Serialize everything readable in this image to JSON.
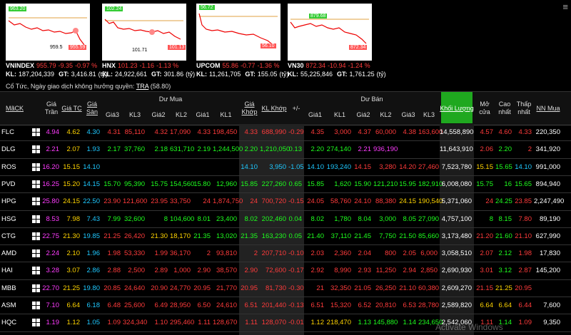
{
  "indices": [
    {
      "name": "VNINDEX",
      "value": "955.79",
      "change": "-9.35",
      "percent": "-0.97 %",
      "kl_label": "KL:",
      "volume": "187,204,339",
      "gt_label": "GT:",
      "turnover": "3,416.81",
      "unit": "(tỷ)",
      "chart_labels": [
        "963.20",
        "959.5",
        "955.59"
      ]
    },
    {
      "name": "HNX",
      "value": "101.23",
      "change": "-1.16",
      "percent": "-1.13 %",
      "kl_label": "KL:",
      "volume": "24,922,661",
      "gt_label": "GT:",
      "turnover": "301.86",
      "unit": "(tỷ)",
      "chart_labels": [
        "102.24",
        "101.71",
        "101.13"
      ]
    },
    {
      "name": "UPCOM",
      "value": "55.86",
      "change": "-0.77",
      "percent": "-1.36 %",
      "kl_label": "KL:",
      "volume": "11,261,705",
      "gt_label": "GT:",
      "turnover": "155.05",
      "unit": "(tỷ)",
      "chart_labels": [
        "56.72",
        "56.10"
      ]
    },
    {
      "name": "VN30",
      "value": "872.34",
      "change": "-10.94",
      "percent": "-1.24 %",
      "kl_label": "KL:",
      "volume": "55,225,846",
      "gt_label": "GT:",
      "turnover": "1,761.25",
      "unit": "(tỷ)",
      "chart_labels": [
        "879.68",
        "872.34"
      ]
    }
  ],
  "dividend": {
    "text": "Cổ Tức, Ngày giao dịch không hưởng quyền:",
    "code": "TRA",
    "price": "(58.80)"
  },
  "header": {
    "buy": "Dư Mua",
    "sell": "Dư Bán",
    "columns": [
      "MãCK",
      "Giá Trần",
      "Giá TC",
      "Giá Sàn",
      "Giá3",
      "KL3",
      "Giá2",
      "KL2",
      "Giá1",
      "KL1",
      "Giá Khớp",
      "KL Khớp",
      "+/-",
      "Giá1",
      "KL1",
      "Giá2",
      "KL2",
      "Giá3",
      "KL3",
      "Khối Lượng",
      "Mở cửa",
      "Cao nhất",
      "Thấp nhất",
      "NN Mua"
    ]
  },
  "table": {
    "rows": [
      [
        "FLC",
        "4.94",
        "4.62",
        "4.30",
        "4.31",
        "85,110",
        "4.32",
        "17,090",
        "4.33",
        "198,450",
        "4.33",
        "688,990",
        "-0.29",
        "4.35",
        "3,000",
        "4.37",
        "60,000",
        "4.38",
        "163,600",
        "14,558,890",
        "4.57",
        "4.60",
        "4.33",
        "220,350"
      ],
      [
        "DLG",
        "2.21",
        "2.07",
        "1.93",
        "2.17",
        "37,760",
        "2.18",
        "631,710",
        "2.19",
        "1,244,500",
        "2.20",
        "1,210,050",
        "0.13",
        "2.20",
        "274,140",
        "2.21",
        "936,190",
        null,
        null,
        "11,643,910",
        "2.06",
        "2.20",
        "2",
        "341,920"
      ],
      [
        "ROS",
        "16.20",
        "15.15",
        "14.10",
        null,
        null,
        null,
        null,
        null,
        null,
        "14.10",
        "3,950",
        "-1.05",
        "14.10",
        "193,240",
        "14.15",
        "3,280",
        "14.20",
        "27,460",
        "7,523,780",
        "15.15",
        "15.65",
        "14.10",
        "991,000"
      ],
      [
        "PVD",
        "16.25",
        "15.20",
        "14.15",
        "15.70",
        "95,390",
        "15.75",
        "154,560",
        "15.80",
        "12,960",
        "15.85",
        "227,260",
        "0.65",
        "15.85",
        "1,620",
        "15.90",
        "121,210",
        "15.95",
        "182,910",
        "6,008,080",
        "15.75",
        "16",
        "15.65",
        "894,940"
      ],
      [
        "HPG",
        "25.80",
        "24.15",
        "22.50",
        "23.90",
        "121,600",
        "23.95",
        "33,750",
        "24",
        "1,874,750",
        "24",
        "700,720",
        "-0.15",
        "24.05",
        "58,760",
        "24.10",
        "88,380",
        "24.15",
        "190,540",
        "5,371,060",
        "24",
        "24.25",
        "23.85",
        "2,247,490"
      ],
      [
        "HSG",
        "8.53",
        "7.98",
        "7.43",
        "7.99",
        "32,600",
        "8",
        "104,600",
        "8.01",
        "23,400",
        "8.02",
        "202,460",
        "0.04",
        "8.02",
        "1,780",
        "8.04",
        "3,000",
        "8.05",
        "27,090",
        "4,757,100",
        "8",
        "8.15",
        "7.80",
        "89,190"
      ],
      [
        "CTG",
        "22.75",
        "21.30",
        "19.85",
        "21.25",
        "26,420",
        "21.30",
        "18,170",
        "21.35",
        "13,020",
        "21.35",
        "163,230",
        "0.05",
        "21.40",
        "37,110",
        "21.45",
        "7,750",
        "21.50",
        "85,660",
        "3,173,480",
        "21.20",
        "21.60",
        "21.10",
        "627,990"
      ],
      [
        "AMD",
        "2.24",
        "2.10",
        "1.96",
        "1.98",
        "53,330",
        "1.99",
        "36,170",
        "2",
        "93,810",
        "2",
        "207,710",
        "-0.10",
        "2.03",
        "2,360",
        "2.04",
        "800",
        "2.05",
        "6,000",
        "3,058,510",
        "2.07",
        "2.12",
        "1.98",
        "17,830"
      ],
      [
        "HAI",
        "3.28",
        "3.07",
        "2.86",
        "2.88",
        "2,500",
        "2.89",
        "1,000",
        "2.90",
        "38,570",
        "2.90",
        "72,600",
        "-0.17",
        "2.92",
        "8,990",
        "2.93",
        "11,250",
        "2.94",
        "2,850",
        "2,690,930",
        "3.01",
        "3.12",
        "2.87",
        "145,200"
      ],
      [
        "MBB",
        "22.70",
        "21.25",
        "19.80",
        "20.85",
        "24,640",
        "20.90",
        "24,770",
        "20.95",
        "21,770",
        "20.95",
        "81,730",
        "-0.30",
        "21",
        "32,350",
        "21.05",
        "26,250",
        "21.10",
        "60,380",
        "2,609,270",
        "21.15",
        "21.25",
        "20.95",
        null
      ],
      [
        "ASM",
        "7.10",
        "6.64",
        "6.18",
        "6.48",
        "25,600",
        "6.49",
        "28,950",
        "6.50",
        "24,610",
        "6.51",
        "201,440",
        "-0.13",
        "6.51",
        "15,320",
        "6.52",
        "20,810",
        "6.53",
        "28,780",
        "2,589,820",
        "6.64",
        "6.64",
        "6.44",
        "7,600"
      ],
      [
        "HQC",
        "1.19",
        "1.12",
        "1.05",
        "1.09",
        "324,340",
        "1.10",
        "295,460",
        "1.11",
        "128,670",
        "1.11",
        "128,070",
        "-0.01",
        "1.12",
        "218,470",
        "1.13",
        "145,880",
        "1.14",
        "234,650",
        "2,542,060",
        "1.11",
        "1.14",
        "1.09",
        "9,350"
      ]
    ]
  },
  "watermark": "Activate Windows"
}
